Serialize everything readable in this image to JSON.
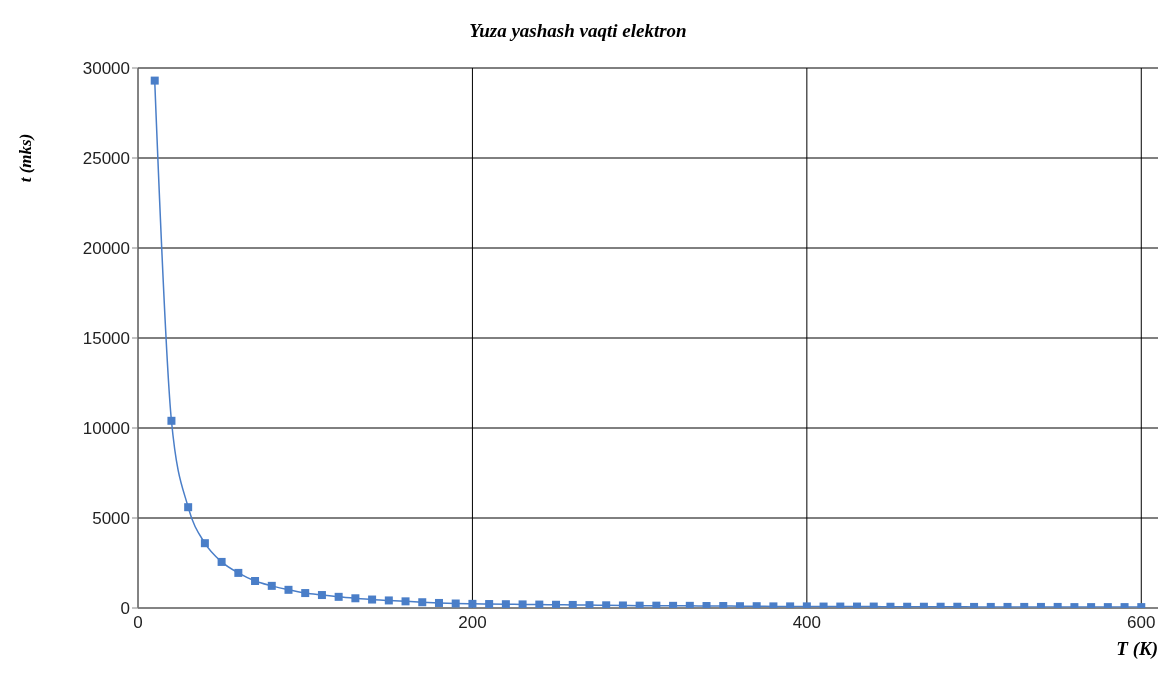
{
  "chart_data": {
    "type": "line",
    "title": "Yuza yashash vaqti elektron",
    "xlabel": "T (K)",
    "ylabel": "t (mks)",
    "x": [
      10,
      20,
      30,
      40,
      50,
      60,
      70,
      80,
      90,
      100,
      110,
      120,
      130,
      140,
      150,
      160,
      170,
      180,
      190,
      200,
      210,
      220,
      230,
      240,
      250,
      260,
      270,
      280,
      290,
      300,
      310,
      320,
      330,
      340,
      350,
      360,
      370,
      380,
      390,
      400,
      410,
      420,
      430,
      440,
      450,
      460,
      470,
      480,
      490,
      500,
      510,
      520,
      530,
      540,
      550,
      560,
      570,
      580,
      590,
      600
    ],
    "series": [
      {
        "color": "#4a7ec8",
        "values": [
          29300,
          10400,
          5600,
          3600,
          2560,
          1950,
          1500,
          1230,
          1010,
          830,
          720,
          620,
          540,
          470,
          420,
          370,
          320,
          280,
          250,
          230,
          220,
          210,
          200,
          190,
          180,
          170,
          160,
          150,
          140,
          130,
          130,
          120,
          120,
          110,
          110,
          100,
          100,
          90,
          90,
          90,
          80,
          80,
          80,
          80,
          70,
          70,
          70,
          70,
          70,
          60,
          60,
          60,
          60,
          60,
          60,
          50,
          50,
          50,
          50,
          50
        ]
      }
    ],
    "xlim": [
      0,
      610
    ],
    "xticks": [
      0,
      200,
      400,
      600
    ],
    "ylim": [
      0,
      30000
    ],
    "yticks": [
      0,
      5000,
      10000,
      15000,
      20000,
      25000,
      30000
    ],
    "grid": true,
    "marker": "square",
    "line_style": "solid"
  }
}
